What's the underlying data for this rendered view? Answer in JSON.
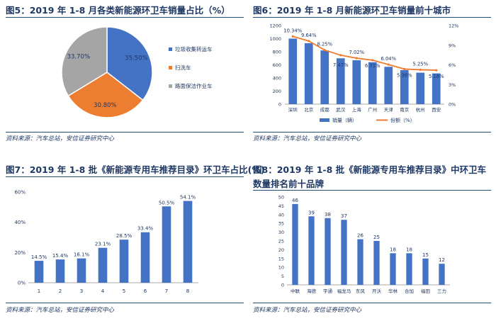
{
  "panels": {
    "p5": {
      "title": "图5：2019 年 1-8 月各类新能源环卫车销量占比（%）",
      "source": "资料来源：汽车总站，安信证券研究中心"
    },
    "p6": {
      "title": "图6：2019 年 1-8 月新能源环卫车销量前十城市",
      "source": "资料来源：汽车总站，安信证券研究中心"
    },
    "p7": {
      "title": "图7：2019 年 1-8 批《新能源专用车推荐目录》环卫车占比(%)",
      "source": "资料来源：汽车总站，安信证券研究中心"
    },
    "p8": {
      "title_line1": "图8：2019 年 1-8 批《新能源专用车推荐目录》中环卫车",
      "title_line2": "数量排名前十品牌",
      "source": "资料来源：汽车总站，安信证券研究中心"
    }
  },
  "chart_data": [
    {
      "id": "p5",
      "type": "pie",
      "categories": [
        "垃圾收集转运车",
        "扫洗车",
        "路面保洁作业车"
      ],
      "values": [
        35.5,
        30.8,
        33.7
      ],
      "labels": [
        "35.50%",
        "30.80%",
        "33.70%"
      ],
      "colors": [
        "#4472c4",
        "#ed7d31",
        "#a5a5a5"
      ],
      "legend_position": "right"
    },
    {
      "id": "p6",
      "type": "bar",
      "categories": [
        "深圳",
        "北京",
        "成都",
        "武汉",
        "上海",
        "广州",
        "天津",
        "南京",
        "杭州",
        "西安"
      ],
      "series": [
        {
          "name": "销量（辆）",
          "type": "bar",
          "values": [
            1000,
            930,
            820,
            700,
            670,
            640,
            570,
            520,
            480,
            470
          ],
          "color": "#4472c4"
        },
        {
          "name": "份额（%）",
          "type": "line",
          "axis": "right",
          "values": [
            10.34,
            9.64,
            8.25,
            7.47,
            7.02,
            6.71,
            6.04,
            5.36,
            5.25,
            5.18
          ],
          "labels": [
            "10.34%",
            "9.64%",
            "8.25%",
            "7.47%",
            "7.02%",
            "6.71%",
            "6.04%",
            "5.36%",
            "5.25%",
            "5.18%"
          ],
          "color": "#ed7d31"
        }
      ],
      "left_ylim": [
        0,
        1200
      ],
      "left_ticks": [
        "0",
        "200",
        "400",
        "600",
        "800",
        "1000",
        "1200"
      ],
      "right_ylim": [
        0,
        12
      ],
      "right_ticks": [
        "0%",
        "3%",
        "6%",
        "9%",
        "12%"
      ],
      "legend_position": "bottom"
    },
    {
      "id": "p7",
      "type": "bar",
      "categories": [
        "1",
        "2",
        "3",
        "4",
        "5",
        "6",
        "7",
        "8"
      ],
      "values": [
        14.5,
        15.4,
        16.1,
        23.1,
        28.5,
        33.4,
        50.5,
        54.1
      ],
      "labels": [
        "14.5%",
        "15.4%",
        "16.1%",
        "23.1%",
        "28.5%",
        "33.4%",
        "50.5%",
        "54.1%"
      ],
      "ylim": [
        0,
        60
      ],
      "yticks": [
        "0%",
        "20%",
        "40%",
        "60%"
      ],
      "color": "#4472c4"
    },
    {
      "id": "p8",
      "type": "bar",
      "categories": [
        "中联",
        "海德",
        "宇通",
        "福龙马",
        "东风",
        "开沃",
        "华林",
        "合加",
        "福田",
        "三力"
      ],
      "values": [
        46,
        39,
        38,
        37,
        26,
        25,
        18,
        18,
        15,
        12
      ],
      "ylim": [
        0,
        50
      ],
      "yticks": [
        "0",
        "5",
        "10",
        "15",
        "20",
        "25",
        "30",
        "35",
        "40",
        "45",
        "50"
      ],
      "color": "#4472c4"
    }
  ]
}
